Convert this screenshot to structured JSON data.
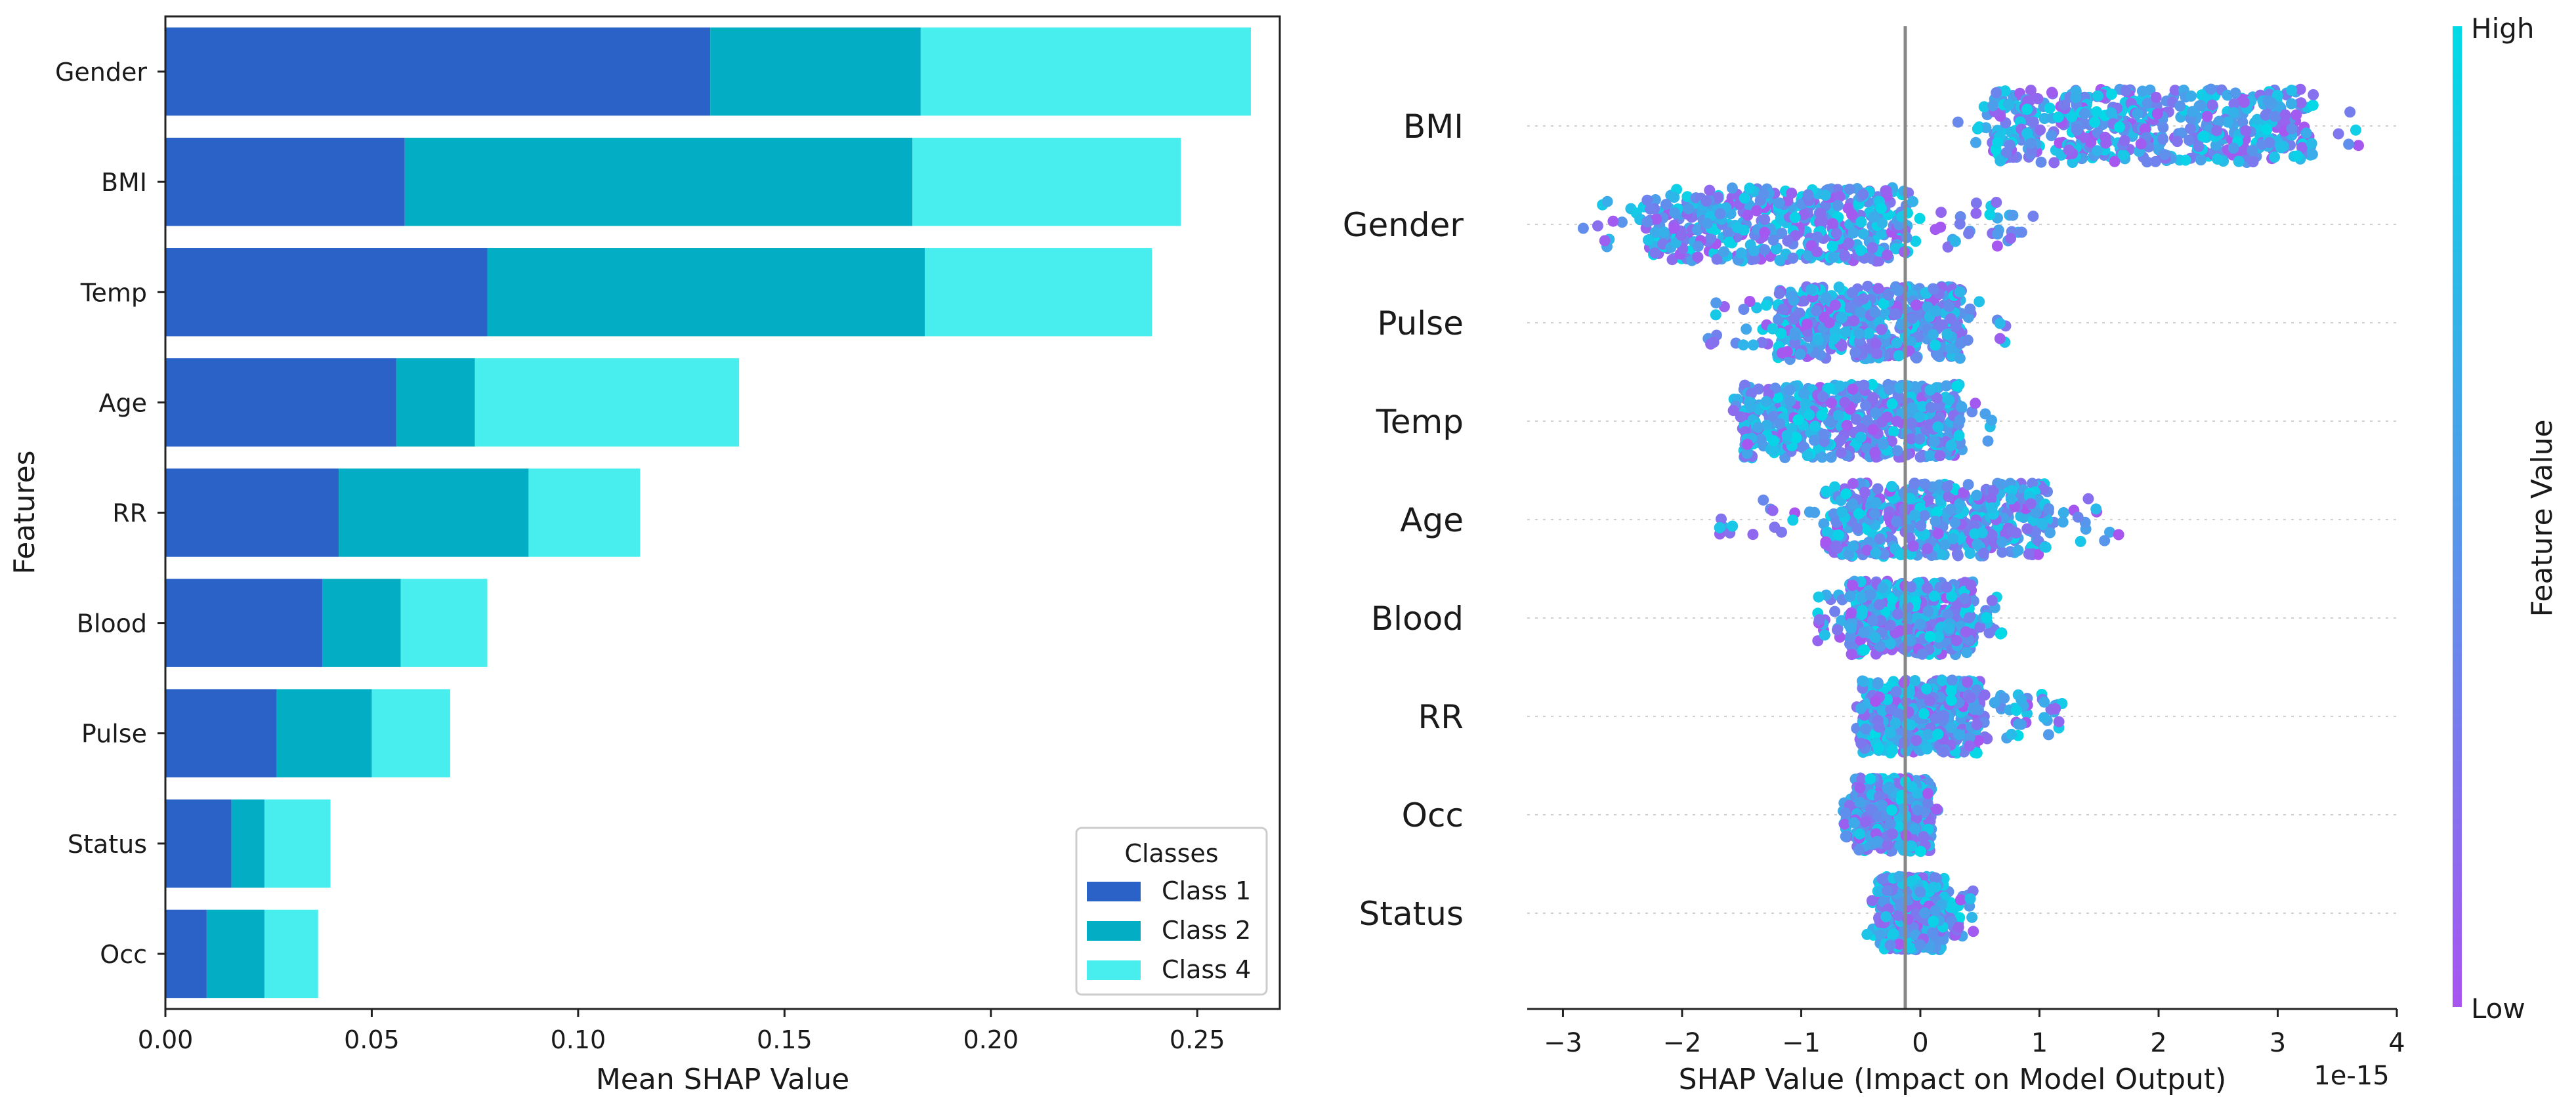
{
  "chart_data": [
    {
      "type": "bar",
      "stacked": true,
      "orientation": "horizontal",
      "title": "",
      "xlabel": "Mean SHAP Value",
      "ylabel": "Features",
      "xlim": [
        0,
        0.27
      ],
      "xticks": [
        "0.00",
        "0.05",
        "0.10",
        "0.15",
        "0.20",
        "0.25"
      ],
      "categories": [
        "Gender",
        "BMI",
        "Temp",
        "Age",
        "RR",
        "Blood",
        "Pulse",
        "Status",
        "Occ"
      ],
      "series": [
        {
          "name": "Class 1",
          "color": "#2b62c8",
          "values": [
            0.132,
            0.058,
            0.078,
            0.056,
            0.042,
            0.038,
            0.027,
            0.016,
            0.01
          ]
        },
        {
          "name": "Class 2",
          "color": "#03aec5",
          "values": [
            0.051,
            0.123,
            0.106,
            0.019,
            0.046,
            0.019,
            0.023,
            0.008,
            0.014
          ]
        },
        {
          "name": "Class 4",
          "color": "#48eeee",
          "values": [
            0.08,
            0.065,
            0.055,
            0.064,
            0.027,
            0.021,
            0.019,
            0.016,
            0.013
          ]
        }
      ],
      "legend": {
        "title": "Classes",
        "position": "lower-right"
      }
    },
    {
      "type": "scatter",
      "subtype": "beeswarm",
      "title": "",
      "xlabel": "SHAP Value (Impact on Model Output)",
      "x_offset_label": "1e-15",
      "xlim": [
        -3.3,
        4.0
      ],
      "xticks": [
        -3,
        -2,
        -1,
        0,
        1,
        2,
        3,
        4
      ],
      "xtick_labels": [
        "−3",
        "−2",
        "−1",
        "0",
        "1",
        "2",
        "3",
        "4"
      ],
      "features": [
        {
          "name": "BMI",
          "core": [
            0.6,
            3.3
          ],
          "tail": [
            0.2,
            3.8
          ]
        },
        {
          "name": "Gender",
          "core": [
            -2.3,
            -0.1
          ],
          "tail": [
            -2.85,
            1.0
          ]
        },
        {
          "name": "Pulse",
          "core": [
            -1.2,
            0.35
          ],
          "tail": [
            -1.85,
            0.75
          ]
        },
        {
          "name": "Temp",
          "core": [
            -1.5,
            0.35
          ],
          "tail": [
            -1.6,
            0.6
          ]
        },
        {
          "name": "Age",
          "core": [
            -0.8,
            1.1
          ],
          "tail": [
            -1.7,
            1.7
          ]
        },
        {
          "name": "Blood",
          "core": [
            -0.6,
            0.45
          ],
          "tail": [
            -0.9,
            0.7
          ]
        },
        {
          "name": "RR",
          "core": [
            -0.5,
            0.5
          ],
          "tail": [
            -0.6,
            1.2
          ]
        },
        {
          "name": "Occ",
          "core": [
            -0.55,
            0.1
          ],
          "tail": [
            -0.65,
            0.15
          ]
        },
        {
          "name": "Status",
          "core": [
            -0.35,
            0.2
          ],
          "tail": [
            -0.45,
            0.45
          ]
        }
      ],
      "colorbar": {
        "label": "Feature Value",
        "high_label": "High",
        "low_label": "Low",
        "high_color": "#00dbe6",
        "low_color": "#a855f0"
      }
    }
  ]
}
